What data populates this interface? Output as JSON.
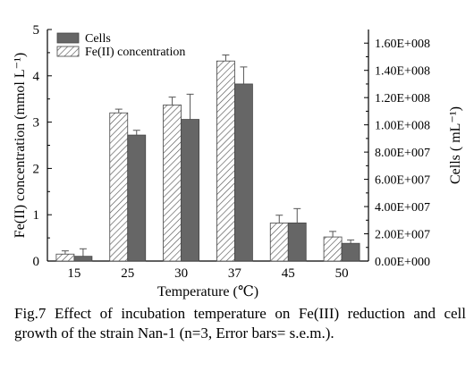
{
  "chart_data": {
    "type": "bar",
    "categories": [
      "15",
      "25",
      "30",
      "37",
      "45",
      "50"
    ],
    "xlabel": "Temperature (℃)",
    "ylabel": "Fe(II) concentration (mmol L⁻¹)",
    "y2label": "Cells ( mL⁻¹)",
    "ylim": [
      0,
      5
    ],
    "yticks": [
      "0",
      "1",
      "2",
      "3",
      "4",
      "5"
    ],
    "y2lim": [
      0,
      170000000.0
    ],
    "y2ticks": [
      "0.00E+000",
      "2.00E+007",
      "4.00E+007",
      "6.00E+007",
      "8.00E+007",
      "1.00E+008",
      "1.20E+008",
      "1.40E+008",
      "1.60E+008"
    ],
    "legend_position": "top-left",
    "series": [
      {
        "name": "Fe(II) concentration",
        "axis": "left",
        "pattern": "hatched",
        "values": [
          0.15,
          3.2,
          3.37,
          4.32,
          0.82,
          0.52
        ],
        "errors": [
          0.07,
          0.08,
          0.17,
          0.13,
          0.17,
          0.12
        ]
      },
      {
        "name": "Cells",
        "axis": "right",
        "color": "#666666",
        "values": [
          3500000.0,
          92500000.0,
          104000000.0,
          130000000.0,
          28000000.0,
          13000000.0
        ],
        "errors": [
          5500000.0,
          3500000.0,
          18500000.0,
          12500000.0,
          10500000.0,
          2500000.0
        ]
      }
    ]
  },
  "caption": {
    "text": "Fig.7 Effect of incubation temperature on Fe(III) reduction and cell growth of the strain Nan-1 (n=3, Error bars= s.e.m.)."
  }
}
